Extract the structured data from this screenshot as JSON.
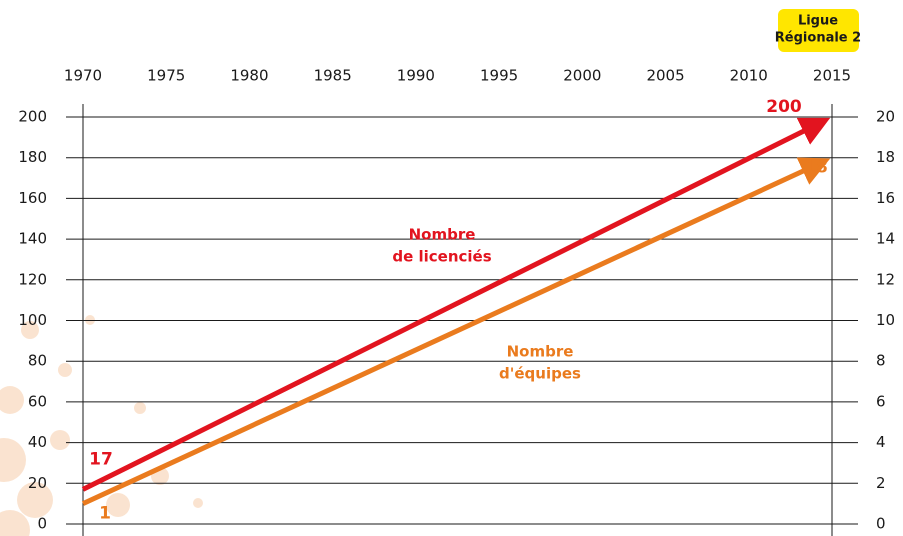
{
  "chart_data": {
    "type": "line",
    "title": [
      "Ligue",
      "Régionale 2"
    ],
    "x": [
      1970,
      2015
    ],
    "xlim": [
      1970,
      2015
    ],
    "xticks": [
      1970,
      1975,
      1980,
      1985,
      1990,
      1995,
      2000,
      2005,
      2010,
      2015
    ],
    "ylim": [
      0,
      200
    ],
    "yticks": [
      0,
      20,
      40,
      60,
      80,
      100,
      120,
      140,
      160,
      180,
      200
    ],
    "y2lim": [
      0,
      20
    ],
    "y2ticks": [
      0,
      2,
      4,
      6,
      8,
      10,
      12,
      14,
      16,
      18,
      20
    ],
    "grid": true,
    "series": [
      {
        "name": [
          "Nombre",
          "de licenciés"
        ],
        "color": "#e2141f",
        "values": [
          17,
          200
        ]
      },
      {
        "name": [
          "Nombre",
          "d'équipes"
        ],
        "color": "#ea7b1e",
        "values": [
          1,
          18
        ],
        "axis": "y2"
      }
    ]
  }
}
